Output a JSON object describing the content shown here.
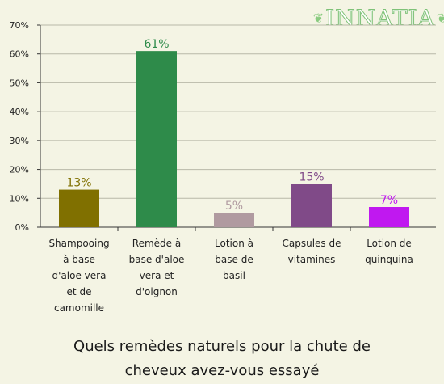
{
  "brand": {
    "logo_text": "INNATIA",
    "logo_color": "#7fc278"
  },
  "chart_data": {
    "type": "bar",
    "title_lines": [
      "Quels remèdes naturels pour la chute de",
      "cheveux avez-vous essayé"
    ],
    "categories": [
      [
        "Shampooing",
        "à base",
        "d'aloe vera",
        "et de",
        "camomille"
      ],
      [
        "Remède à",
        "base d'aloe",
        "vera et",
        "d'oignon"
      ],
      [
        "Lotion à",
        "base de",
        "basil"
      ],
      [
        "Capsules de",
        "vitamines"
      ],
      [
        "Lotion de",
        "quinquina"
      ]
    ],
    "values": [
      13,
      61,
      5,
      15,
      7
    ],
    "value_labels": [
      "13%",
      "61%",
      "5%",
      "15%",
      "7%"
    ],
    "colors": [
      "#807000",
      "#2e8b4a",
      "#b09aa0",
      "#804a88",
      "#c018f0"
    ],
    "yticks": [
      "0%",
      "10%",
      "20%",
      "30%",
      "40%",
      "50%",
      "60%",
      "70%"
    ],
    "ylim": [
      0,
      70
    ],
    "grid": true
  }
}
